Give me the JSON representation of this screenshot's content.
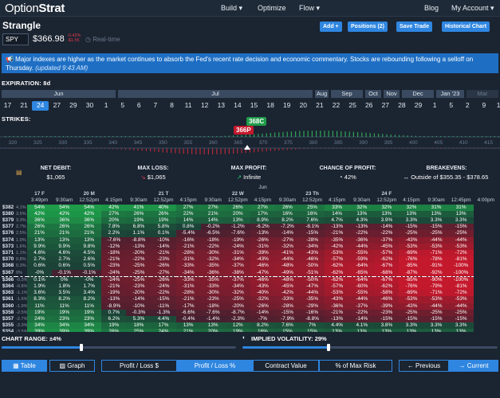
{
  "logo": {
    "a": "Option",
    "b": "Strat"
  },
  "nav": {
    "build": "Build ▾",
    "optimize": "Optimize",
    "flow": "Flow ▾",
    "blog": "Blog",
    "account": "My Account ▾"
  },
  "header": {
    "title": "Strangle",
    "symbol": "SPY",
    "price": "$366.98",
    "chg1": "-0.42%",
    "chg2": "-$1.55",
    "realtime": "Real-time",
    "add": "Add +",
    "positions": "Positions (2)",
    "save": "Save Trade",
    "historical": "Historical Chart"
  },
  "banner": {
    "text": "📢 Major indexes are higher as the market continues to absorb the Fed's recent rate decision and economic commentary. Stocks are rebounding following a selloff on Thursday.",
    "updated": "(updated 9:43 AM)"
  },
  "expiration": {
    "label": "EXPIRATION: 8d",
    "months": [
      "Jun",
      "Jul",
      "Aug",
      "Sep",
      "Oct",
      "Nov",
      "Dec",
      "Jan '23",
      "Mar"
    ],
    "dates": [
      "17",
      "21",
      "24",
      "27",
      "29",
      "30",
      "1",
      "5",
      "6",
      "7",
      "8",
      "11",
      "12",
      "13",
      "14",
      "15",
      "18",
      "19",
      "20",
      "21",
      "22",
      "25",
      "26",
      "27",
      "28",
      "29",
      "1",
      "5",
      "2",
      "9",
      "16"
    ],
    "selected": "24"
  },
  "strikes": {
    "label": "STRIKES:",
    "call": "368C",
    "put": "366P",
    "ticks": [
      "320",
      "325",
      "330",
      "335",
      "340",
      "345",
      "350",
      "355",
      "360",
      "365",
      "370",
      "375",
      "380",
      "385",
      "390",
      "395",
      "400",
      "405",
      "410",
      "415"
    ]
  },
  "summary": {
    "debit_h": "NET DEBIT:",
    "debit_v": "$1,065",
    "loss_h": "MAX LOSS:",
    "loss_v": "$1,065",
    "profit_h": "MAX PROFIT:",
    "profit_v": "Infinite",
    "chance_h": "CHANCE OF PROFIT:",
    "chance_v": "42%",
    "be_h": "BREAKEVENS:",
    "be_v": "Outside of $355.35 - $378.65"
  },
  "table": {
    "month": "Jun",
    "days": [
      "17 F",
      "20 M",
      "21 T",
      "22 W",
      "23 Th",
      "24 F"
    ],
    "times": [
      "3:49pm",
      "9:30am",
      "12:52pm",
      "4:15pm",
      "9:30am",
      "12:52pm",
      "4:15pm",
      "9:30am",
      "12:52pm",
      "4:15pm",
      "9:30am",
      "12:52pm",
      "4:15pm",
      "9:30am",
      "12:52pm",
      "4:15pm",
      "9:30am",
      "12:45pm",
      "4:00pm"
    ],
    "rows": [
      [
        "$382",
        "4.1%",
        "54%",
        "54%",
        "54%",
        "42%",
        "41%",
        "40%",
        "27%",
        "27%",
        "26%",
        "27%",
        "26%",
        "25%",
        "33%",
        "32%",
        "32%",
        "32%",
        "31%",
        "31%"
      ],
      [
        "$380",
        "3.5%",
        "42%",
        "42%",
        "42%",
        "27%",
        "26%",
        "26%",
        "22%",
        "21%",
        "20%",
        "17%",
        "16%",
        "16%",
        "14%",
        "13%",
        "13%",
        "13%",
        "13%",
        "13%"
      ],
      [
        "$379",
        "3.3%",
        "36%",
        "36%",
        "36%",
        "20%",
        "19%",
        "19%",
        "14%",
        "14%",
        "13%",
        "8.9%",
        "8.2%",
        "7.6%",
        "4.7%",
        "4.3%",
        "3.9%",
        "3.3%",
        "3.3%",
        "3.3%"
      ],
      [
        "$377",
        "2.7%",
        "26%",
        "26%",
        "26%",
        "7.8%",
        "6.8%",
        "5.8%",
        "0.8%",
        "-0.2%",
        "-1.2%",
        "-6.2%",
        "-7.2%",
        "-8.1%",
        "-13%",
        "-13%",
        "-14%",
        "-15%",
        "-15%",
        "-15%"
      ],
      [
        "$376",
        "2.5%",
        "21%",
        "21%",
        "21%",
        "2.2%",
        "1.1%",
        "0.1%",
        "-5.4%",
        "-6.5%",
        "-7.6%",
        "-13%",
        "-14%",
        "-15%",
        "-21%",
        "-22%",
        "-22%",
        "-25%",
        "-25%",
        "-25%"
      ],
      [
        "$374",
        "1.9%",
        "13%",
        "13%",
        "13%",
        "-7.6%",
        "-8.8%",
        "-10%",
        "-16%",
        "-18%",
        "-19%",
        "-26%",
        "-27%",
        "-28%",
        "-35%",
        "-36%",
        "-37%",
        "-43%",
        "-44%",
        "-44%"
      ],
      [
        "$373",
        "1.6%",
        "9.9%",
        "9.9%",
        "9.8%",
        "-12%",
        "-13%",
        "-14%",
        "-21%",
        "-22%",
        "-24%",
        "-31%",
        "-32%",
        "-34%",
        "-42%",
        "-44%",
        "-45%",
        "-53%",
        "-53%",
        "-53%"
      ],
      [
        "$371",
        "1.1%",
        "4.6%",
        "4.6%",
        "4.5%",
        "-18%",
        "-20%",
        "-21%",
        "-28%",
        "-30%",
        "-31%",
        "-39%",
        "-41%",
        "-43%",
        "-53%",
        "-55%",
        "-57%",
        "-69%",
        "-71%",
        "-72%"
      ],
      [
        "$370",
        "0.8%",
        "2.7%",
        "2.7%",
        "2.6%",
        "-21%",
        "-22%",
        "-23%",
        "-31%",
        "-32%",
        "-34%",
        "-43%",
        "-44%",
        "-46%",
        "-57%",
        "-59%",
        "-62%",
        "-76%",
        "-78%",
        "-81%"
      ],
      [
        "$368",
        "0.3%",
        "0.6%",
        "0.6%",
        "0.5%",
        "-23%",
        "-25%",
        "-26%",
        "-33%",
        "-35%",
        "-37%",
        "-46%",
        "-48%",
        "-50%",
        "-62%",
        "-64%",
        "-67%",
        "-85%",
        "-91%",
        "-100%"
      ],
      [
        "$367",
        "0%",
        "-0%",
        "-0.1%",
        "-0.1%",
        "-24%",
        "-25%",
        "-27%",
        "-34%",
        "-36%",
        "-38%",
        "-47%",
        "-49%",
        "-51%",
        "-62%",
        "-65%",
        "-68%",
        "-87%",
        "-92%",
        "-100%"
      ],
      [
        "$366",
        "-0.3%",
        "0.1%",
        "0%",
        "-0%",
        "-24%",
        "-25%",
        "-26%",
        "-33%",
        "-35%",
        "-37%",
        "-46%",
        "-48%",
        "-50%",
        "-62%",
        "-64%",
        "-67%",
        "-85%",
        "-90%",
        "-100%"
      ],
      [
        "$364",
        "-0.8%",
        "1.9%",
        "1.8%",
        "1.7%",
        "-21%",
        "-23%",
        "-24%",
        "-31%",
        "-33%",
        "-34%",
        "-43%",
        "-45%",
        "-47%",
        "-57%",
        "-60%",
        "-62%",
        "-76%",
        "-79%",
        "-81%"
      ],
      [
        "$363",
        "-1.1%",
        "3.6%",
        "3.5%",
        "3.4%",
        "-19%",
        "-20%",
        "-22%",
        "-28%",
        "-30%",
        "-32%",
        "-40%",
        "-42%",
        "-44%",
        "-53%",
        "-55%",
        "-58%",
        "-69%",
        "-71%",
        "-72%"
      ],
      [
        "$361",
        "-1.6%",
        "8.3%",
        "8.2%",
        "8.2%",
        "-13%",
        "-14%",
        "-15%",
        "-21%",
        "-23%",
        "-25%",
        "-32%",
        "-33%",
        "-35%",
        "-43%",
        "-44%",
        "-46%",
        "-53%",
        "-53%",
        "-53%"
      ],
      [
        "$360",
        "-1.9%",
        "11%",
        "11%",
        "11%",
        "-8.9%",
        "-10%",
        "-11%",
        "-17%",
        "-18%",
        "-20%",
        "-26%",
        "-28%",
        "-29%",
        "-36%",
        "-37%",
        "-39%",
        "-43%",
        "-44%",
        "-44%"
      ],
      [
        "$358",
        "-2.5%",
        "19%",
        "19%",
        "19%",
        "0.7%",
        "-0.3%",
        "-1.3%",
        "-6.6%",
        "-7.6%",
        "-8.7%",
        "-14%",
        "-15%",
        "-16%",
        "-21%",
        "-22%",
        "-23%",
        "-25%",
        "-25%",
        "-25%"
      ],
      [
        "$357",
        "-2.7%",
        "24%",
        "23%",
        "23%",
        "6.2%",
        "5.3%",
        "4.4%",
        "-0.4%",
        "-1.4%",
        "-2.3%",
        "-7%",
        "-7.9%",
        "-8.8%",
        "-13%",
        "-14%",
        "-15%",
        "-15%",
        "-15%",
        "-15%"
      ],
      [
        "$355",
        "-3.3%",
        "34%",
        "34%",
        "34%",
        "19%",
        "18%",
        "17%",
        "13%",
        "13%",
        "12%",
        "8.2%",
        "7.6%",
        "7%",
        "4.4%",
        "4.1%",
        "3.8%",
        "3.3%",
        "3.3%",
        "3.3%"
      ],
      [
        "$354",
        "-3.5%",
        "39%",
        "39%",
        "39%",
        "26%",
        "25%",
        "24%",
        "21%",
        "20%",
        "19%",
        "16%",
        "15%",
        "15%",
        "13%",
        "13%",
        "13%",
        "13%",
        "13%",
        "13%"
      ],
      [
        "$352",
        "-4.1%",
        "52%",
        "52%",
        "52%",
        "40%",
        "40%",
        "39%",
        "36%",
        "36%",
        "36%",
        "33%",
        "33%",
        "33%",
        "32%",
        "32%",
        "32%",
        "31%",
        "31%",
        "31%"
      ]
    ]
  },
  "controls": {
    "range": "CHART RANGE: ±4%",
    "iv": "IMPLIED VOLATILITY: 29%"
  },
  "tabs": {
    "table": "Table",
    "graph": "Graph",
    "pl_dollar": "Profit / Loss $",
    "pl_pct": "Profit / Loss %",
    "contract": "Contract Value",
    "maxrisk": "% of Max Risk",
    "prev": "← Previous",
    "current": "→ Current"
  },
  "colors": {
    "accent": "#2f86e0",
    "profit": "#1e9c4a",
    "loss": "#c4182c",
    "bg": "#1b2431"
  }
}
